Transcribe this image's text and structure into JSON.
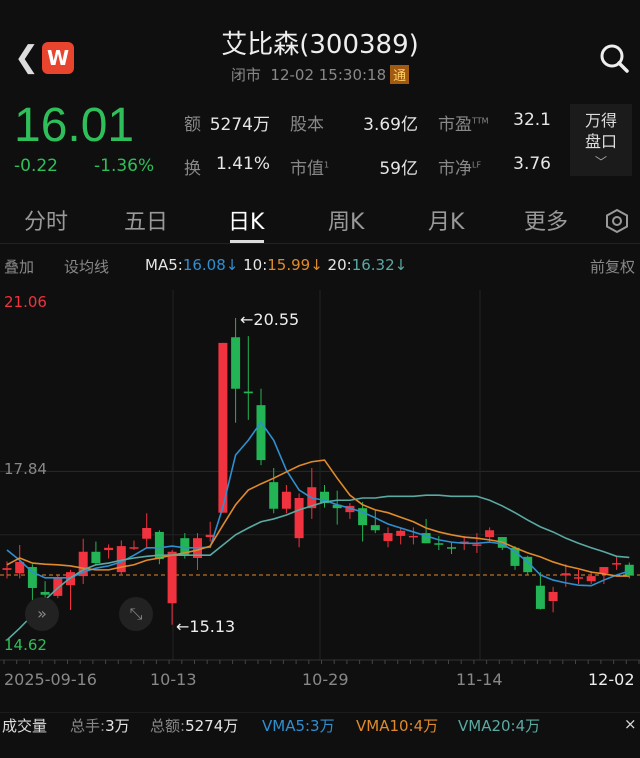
{
  "header": {
    "title": "艾比森(300389)",
    "status": "闭市",
    "datetime": "12-02 15:30:18",
    "tong_badge": "通",
    "logo_letter": "W"
  },
  "quote": {
    "price": "16.01",
    "change": "-0.22",
    "change_pct": "-1.36%",
    "stats": [
      {
        "label": "额",
        "value": "5274万"
      },
      {
        "label": "股本",
        "value": "3.69亿"
      },
      {
        "label": "市盈",
        "sup": "TTM",
        "value": "32.1"
      },
      {
        "label": "换",
        "value": "1.41%"
      },
      {
        "label": "市值",
        "sup": "1",
        "value": "59亿"
      },
      {
        "label": "市净",
        "sup": "LF",
        "value": "3.76"
      }
    ],
    "wind_button": {
      "line1": "万得",
      "line2": "盘口",
      "chevron": "﹀"
    }
  },
  "tabs": [
    {
      "label": "分时"
    },
    {
      "label": "五日"
    },
    {
      "label": "日K",
      "active": true
    },
    {
      "label": "周K"
    },
    {
      "label": "月K"
    },
    {
      "label": "更多"
    }
  ],
  "ma_bar": {
    "overlay": "叠加",
    "set_ma": "设均线",
    "ma5_label": "MA5:",
    "ma5": "16.08↓",
    "ma10_label": "10:",
    "ma10": "15.99↓",
    "ma20_label": "20:",
    "ma20": "16.32↓",
    "adjust": "前复权"
  },
  "colors": {
    "up": "#f0333f",
    "down": "#22b455",
    "ma5": "#2f8fd0",
    "ma10": "#e08a2c",
    "ma20": "#5aa9a3"
  },
  "chart_data": {
    "type": "candlestick",
    "y_labels": {
      "max": "21.06",
      "mid": "17.84",
      "min": "14.62"
    },
    "ylim": [
      14.62,
      21.06
    ],
    "annotations": {
      "high": "←20.55",
      "low": "←15.13"
    },
    "x_ticks": [
      "2025-09-16",
      "10-13",
      "10-29",
      "11-14",
      "12-02"
    ],
    "current_price_line": 16.01,
    "candles": [
      [
        16.1,
        16.25,
        15.95,
        16.13
      ],
      [
        16.04,
        16.54,
        15.95,
        16.24
      ],
      [
        16.15,
        16.2,
        15.55,
        15.78
      ],
      [
        15.71,
        15.9,
        15.5,
        15.66
      ],
      [
        15.64,
        16.0,
        15.6,
        15.97
      ],
      [
        15.83,
        16.1,
        15.39,
        16.06
      ],
      [
        15.99,
        16.65,
        15.85,
        16.42
      ],
      [
        16.42,
        16.6,
        16.2,
        16.22
      ],
      [
        16.45,
        16.55,
        16.3,
        16.49
      ],
      [
        16.06,
        16.62,
        16.0,
        16.52
      ],
      [
        16.48,
        16.62,
        16.45,
        16.5
      ],
      [
        16.65,
        17.1,
        16.5,
        16.84
      ],
      [
        16.77,
        16.8,
        16.2,
        16.29
      ],
      [
        15.51,
        16.45,
        15.13,
        16.42
      ],
      [
        16.66,
        16.75,
        16.3,
        16.36
      ],
      [
        16.31,
        16.75,
        16.1,
        16.66
      ],
      [
        16.68,
        16.95,
        16.6,
        16.72
      ],
      [
        17.11,
        20.11,
        17.11,
        20.11
      ],
      [
        20.21,
        20.55,
        18.7,
        19.3
      ],
      [
        19.25,
        20.23,
        18.75,
        19.22
      ],
      [
        19.01,
        19.3,
        17.95,
        18.04
      ],
      [
        17.65,
        17.9,
        17.1,
        17.18
      ],
      [
        17.18,
        17.6,
        17.1,
        17.48
      ],
      [
        16.66,
        17.45,
        16.5,
        17.37
      ],
      [
        17.19,
        17.9,
        17.0,
        17.56
      ],
      [
        17.48,
        17.6,
        17.2,
        17.28
      ],
      [
        17.25,
        17.5,
        16.9,
        17.19
      ],
      [
        17.12,
        17.28,
        17.0,
        17.23
      ],
      [
        17.19,
        17.3,
        16.6,
        16.89
      ],
      [
        16.89,
        17.15,
        16.75,
        16.8
      ],
      [
        16.61,
        16.85,
        16.5,
        16.75
      ],
      [
        16.7,
        16.85,
        16.55,
        16.79
      ],
      [
        16.7,
        16.85,
        16.55,
        16.7
      ],
      [
        16.75,
        17.0,
        16.6,
        16.57
      ],
      [
        16.57,
        16.7,
        16.45,
        16.55
      ],
      [
        16.5,
        16.6,
        16.38,
        16.48
      ],
      [
        16.57,
        16.7,
        16.45,
        16.6
      ],
      [
        16.55,
        16.75,
        16.4,
        16.55
      ],
      [
        16.68,
        16.85,
        16.6,
        16.8
      ],
      [
        16.68,
        16.68,
        16.45,
        16.49
      ],
      [
        16.49,
        16.52,
        16.1,
        16.17
      ],
      [
        16.33,
        16.35,
        16.0,
        16.06
      ],
      [
        15.82,
        16.06,
        15.4,
        15.41
      ],
      [
        15.55,
        15.8,
        15.35,
        15.71
      ],
      [
        16.0,
        16.2,
        15.8,
        16.04
      ],
      [
        15.97,
        16.1,
        15.85,
        15.97
      ],
      [
        15.9,
        16.08,
        15.85,
        15.99
      ],
      [
        16.04,
        16.12,
        15.85,
        16.15
      ],
      [
        16.2,
        16.35,
        16.1,
        16.22
      ],
      [
        16.19,
        16.23,
        15.95,
        16.01
      ]
    ],
    "ma5": [
      16.45,
      16.27,
      16.06,
      15.96,
      15.96,
      15.96,
      16.06,
      16.13,
      16.17,
      16.24,
      16.36,
      16.49,
      16.49,
      16.52,
      16.49,
      16.49,
      16.5,
      17.21,
      18.13,
      18.39,
      18.71,
      18.39,
      17.86,
      17.51,
      17.37,
      17.33,
      17.25,
      17.19,
      17.12,
      17.02,
      16.91,
      16.84,
      16.77,
      16.7,
      16.63,
      16.59,
      16.57,
      16.57,
      16.59,
      16.56,
      16.42,
      16.24,
      16.01,
      15.92,
      15.87,
      15.83,
      15.82,
      15.92,
      16.01,
      16.08
    ],
    "ma10": [
      16.19,
      16.31,
      16.22,
      16.2,
      16.19,
      16.17,
      16.13,
      16.1,
      16.1,
      16.15,
      16.19,
      16.27,
      16.31,
      16.36,
      16.4,
      16.45,
      16.52,
      16.89,
      17.25,
      17.51,
      17.62,
      17.72,
      17.83,
      17.94,
      18.01,
      18.04,
      17.72,
      17.42,
      17.25,
      17.16,
      17.11,
      17.03,
      16.95,
      16.84,
      16.77,
      16.72,
      16.68,
      16.66,
      16.63,
      16.59,
      16.49,
      16.4,
      16.33,
      16.24,
      16.17,
      16.12,
      16.06,
      16.03,
      15.99,
      15.99
    ],
    "ma20": [
      14.86,
      15.07,
      15.3,
      15.57,
      15.78,
      15.96,
      16.1,
      16.19,
      16.22,
      16.27,
      16.31,
      16.34,
      16.36,
      16.36,
      16.36,
      16.36,
      16.36,
      16.54,
      16.72,
      16.84,
      16.95,
      17.0,
      17.07,
      17.16,
      17.23,
      17.3,
      17.33,
      17.33,
      17.37,
      17.37,
      17.4,
      17.4,
      17.4,
      17.42,
      17.42,
      17.4,
      17.4,
      17.4,
      17.33,
      17.23,
      17.11,
      16.98,
      16.86,
      16.77,
      16.66,
      16.57,
      16.49,
      16.42,
      16.34,
      16.32
    ]
  },
  "volume_bar": {
    "title": "成交量",
    "total_hands_label": "总手:",
    "total_hands": "3万",
    "total_amount_label": "总额:",
    "total_amount": "5274万",
    "vma5": "VMA5:3万",
    "vma10": "VMA10:4万",
    "vma20": "VMA20:4万",
    "close": "×"
  }
}
